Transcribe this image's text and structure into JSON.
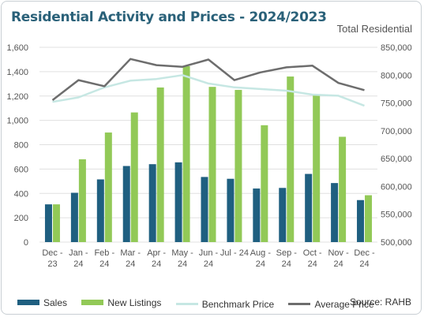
{
  "title": "Residential Activity and Prices - 2024/2023",
  "right_axis_title": "Total Residential",
  "source": "Source: RAHB",
  "colors": {
    "sales": "#1f5f80",
    "new_listings": "#92c957",
    "benchmark": "#c6e7e3",
    "average": "#6d6d6d",
    "grid": "#e0e0e0"
  },
  "chart_data": {
    "type": "bar",
    "categories": [
      [
        "Dec -",
        "23"
      ],
      [
        "Jan -",
        "24"
      ],
      [
        "Feb -",
        "24"
      ],
      [
        "Mar -",
        "24"
      ],
      [
        "Apr -",
        "24"
      ],
      [
        "May -",
        "24"
      ],
      [
        "Jun -",
        "24"
      ],
      [
        "Jul - 24"
      ],
      [
        "Aug -",
        "24"
      ],
      [
        "Sep -",
        "24"
      ],
      [
        "Oct -",
        "24"
      ],
      [
        "Nov -",
        "24"
      ],
      [
        "Dec -",
        "24"
      ]
    ],
    "left_axis": {
      "ylim": [
        0,
        1600
      ],
      "ticks": [
        "0",
        "200",
        "400",
        "600",
        "800",
        "1,000",
        "1,200",
        "1,400",
        "1,600"
      ]
    },
    "right_axis": {
      "ylim": [
        500000,
        850000
      ],
      "ticks": [
        "500,000",
        "550,000",
        "600,000",
        "650,000",
        "700,000",
        "750,000",
        "800,000",
        "850,000"
      ]
    },
    "grid": true,
    "legend_position": "bottom-left",
    "series": [
      {
        "name": "Sales",
        "type": "bar",
        "axis": "left",
        "values": [
          310,
          405,
          515,
          625,
          640,
          655,
          535,
          520,
          440,
          445,
          560,
          485,
          345
        ]
      },
      {
        "name": "New Listings",
        "type": "bar",
        "axis": "left",
        "values": [
          310,
          680,
          900,
          1065,
          1270,
          1445,
          1275,
          1250,
          960,
          1360,
          1205,
          865,
          385
        ]
      },
      {
        "name": "Benchmark Price",
        "type": "line",
        "axis": "right",
        "values": [
          752000,
          760000,
          778000,
          790000,
          793000,
          800000,
          785000,
          778000,
          775000,
          772000,
          765000,
          763000,
          745000
        ]
      },
      {
        "name": "Average Price",
        "type": "line",
        "axis": "right",
        "values": [
          755000,
          791000,
          780000,
          829000,
          818000,
          815000,
          828000,
          791000,
          805000,
          814000,
          817000,
          786000,
          773000
        ]
      }
    ]
  }
}
